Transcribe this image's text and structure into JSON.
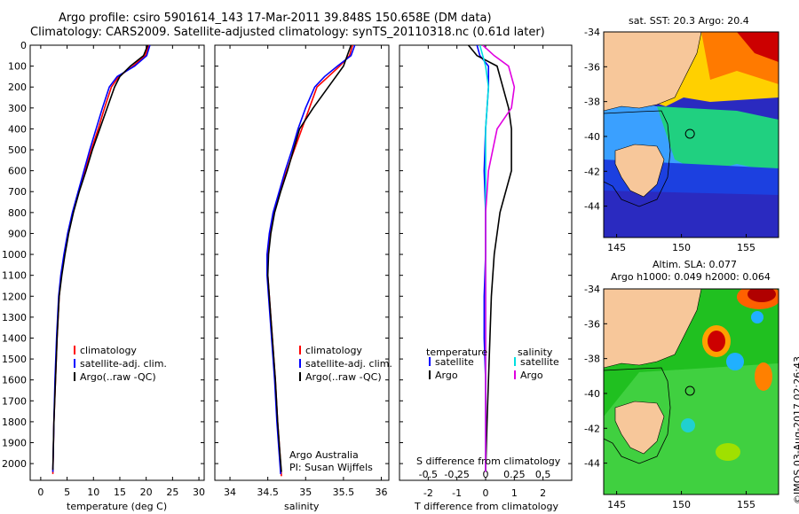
{
  "header": {
    "title1": "Argo profile: csiro 5901614_143 17-Mar-2011 39.848S 150.658E (DM data)",
    "title2": "Climatology: CARS2009. Satellite-adjusted climatology: synTS_20110318.nc (0.61d later)"
  },
  "chart_data": [
    {
      "type": "line",
      "panel": "temperature",
      "xlabel": "temperature (deg C)",
      "ylabel": "",
      "xlim": [
        -2,
        31
      ],
      "ylim": [
        2080,
        0
      ],
      "x_ticks": [
        0,
        5,
        10,
        15,
        20,
        25,
        30
      ],
      "y_ticks": [
        0,
        100,
        200,
        300,
        400,
        500,
        600,
        700,
        800,
        900,
        1000,
        1100,
        1200,
        1300,
        1400,
        1500,
        1600,
        1700,
        1800,
        1900,
        2000
      ],
      "legend": [
        "climatology",
        "satellite-adj. clim.",
        "Argo(..raw -QC)"
      ],
      "series": [
        {
          "name": "climatology",
          "color": "#ff0000",
          "x": [
            20.5,
            19.8,
            17.5,
            14.8,
            13.4,
            12.1,
            10.9,
            9.6,
            8.4,
            7.2,
            6.1,
            5.2,
            4.5,
            3.9,
            3.5,
            3.1,
            2.8,
            2.5,
            2.3
          ],
          "y": [
            0,
            50,
            100,
            150,
            200,
            300,
            400,
            500,
            600,
            700,
            800,
            900,
            1000,
            1100,
            1200,
            1400,
            1600,
            1800,
            2050
          ]
        },
        {
          "name": "satellite-adj. clim.",
          "color": "#0000ff",
          "x": [
            20.7,
            20.1,
            17.8,
            14.5,
            13.0,
            11.7,
            10.5,
            9.3,
            8.2,
            7.1,
            6.0,
            5.1,
            4.4,
            3.8,
            3.4,
            3.0,
            2.7,
            2.5,
            2.3
          ],
          "y": [
            0,
            50,
            100,
            150,
            200,
            300,
            400,
            500,
            600,
            700,
            800,
            900,
            1000,
            1100,
            1200,
            1400,
            1600,
            1800,
            2040
          ]
        },
        {
          "name": "Argo(..raw -QC)",
          "color": "#000000",
          "x": [
            20.3,
            19.5,
            17.0,
            15.0,
            14.0,
            12.6,
            11.2,
            9.8,
            8.6,
            7.3,
            6.2,
            5.3,
            4.6,
            4.0,
            3.5,
            3.1,
            2.8,
            2.5,
            2.3
          ],
          "y": [
            0,
            50,
            100,
            150,
            200,
            300,
            400,
            500,
            600,
            700,
            800,
            900,
            1000,
            1100,
            1200,
            1400,
            1600,
            1800,
            2030
          ]
        }
      ]
    },
    {
      "type": "line",
      "panel": "salinity",
      "xlabel": "salinity",
      "xlim": [
        33.8,
        36.1
      ],
      "ylim": [
        2080,
        0
      ],
      "x_ticks": [
        34,
        34.5,
        35,
        35.5,
        36
      ],
      "legend": [
        "climatology",
        "satellite-adj. clim.",
        "Argo(..raw -QC)"
      ],
      "annotation": [
        "Argo Australia",
        "PI: Susan Wijffels"
      ],
      "series": [
        {
          "name": "climatology",
          "color": "#ff0000",
          "x": [
            35.62,
            35.58,
            35.45,
            35.3,
            35.15,
            35.05,
            34.95,
            34.85,
            34.75,
            34.66,
            34.58,
            34.53,
            34.5,
            34.5,
            34.52,
            34.56,
            34.6,
            34.63,
            34.66,
            34.68
          ],
          "y": [
            0,
            50,
            100,
            150,
            200,
            300,
            400,
            500,
            600,
            700,
            800,
            900,
            1000,
            1100,
            1200,
            1400,
            1600,
            1800,
            1950,
            2060
          ]
        },
        {
          "name": "satellite-adj. clim.",
          "color": "#0000ff",
          "x": [
            35.65,
            35.6,
            35.42,
            35.25,
            35.12,
            35.0,
            34.9,
            34.82,
            34.73,
            34.65,
            34.57,
            34.52,
            34.49,
            34.49,
            34.51,
            34.55,
            34.59,
            34.62,
            34.65,
            34.67
          ],
          "y": [
            0,
            50,
            100,
            150,
            200,
            300,
            400,
            500,
            600,
            700,
            800,
            900,
            1000,
            1100,
            1200,
            1400,
            1600,
            1800,
            1950,
            2050
          ]
        },
        {
          "name": "Argo(..raw -QC)",
          "color": "#000000",
          "x": [
            35.6,
            35.55,
            35.5,
            35.4,
            35.3,
            35.1,
            34.92,
            34.84,
            34.76,
            34.67,
            34.59,
            34.54,
            34.51,
            34.5,
            34.52,
            34.56,
            34.6,
            34.63,
            34.66,
            34.68
          ],
          "y": [
            0,
            50,
            100,
            150,
            200,
            300,
            400,
            500,
            600,
            700,
            800,
            900,
            1000,
            1100,
            1200,
            1400,
            1600,
            1800,
            1950,
            2040
          ]
        }
      ]
    },
    {
      "type": "line",
      "panel": "difference",
      "xlabel": "T difference from climatology",
      "xlabel_top": "S difference from climatology",
      "xlim": [
        -3,
        3
      ],
      "ylim": [
        2080,
        0
      ],
      "x_ticks": [
        -2,
        -1,
        0,
        1,
        2
      ],
      "s_ticks": [
        -0.5,
        -0.25,
        0,
        0.25,
        0.5
      ],
      "legend_headers": [
        "temperature",
        "salinity"
      ],
      "legend": [
        "satellite",
        "Argo",
        "satellite",
        "Argo"
      ],
      "series": [
        {
          "name": "satellite",
          "color": "#0000ff",
          "x": [
            -0.3,
            -0.2,
            0.1,
            0.1,
            0.05,
            0.0,
            -0.05,
            0.0,
            0.0,
            -0.05,
            -0.05,
            0.0,
            0.0,
            0.0
          ],
          "y": [
            0,
            50,
            100,
            200,
            300,
            400,
            600,
            800,
            1000,
            1200,
            1400,
            1600,
            1800,
            2040
          ]
        },
        {
          "name": "Argo",
          "color": "#000000",
          "x": [
            -0.6,
            -0.3,
            0.4,
            0.6,
            0.8,
            0.9,
            0.9,
            0.5,
            0.3,
            0.2,
            0.15,
            0.1,
            0.05,
            0.0
          ],
          "y": [
            0,
            50,
            100,
            200,
            300,
            400,
            600,
            800,
            1000,
            1200,
            1400,
            1600,
            1800,
            2040
          ]
        },
        {
          "name": "satellite",
          "color": "#00e0e0",
          "x": [
            -0.2,
            -0.1,
            0.0,
            0.1,
            0.05,
            0.0,
            0.0,
            0.0,
            0.0,
            0.0,
            0.0,
            0.0,
            0.0,
            0.0
          ],
          "y": [
            0,
            50,
            100,
            200,
            300,
            400,
            600,
            800,
            1000,
            1200,
            1400,
            1600,
            1800,
            2040
          ]
        },
        {
          "name": "Argo",
          "color": "#e000e0",
          "x": [
            -0.1,
            0.3,
            0.8,
            1.0,
            0.9,
            0.4,
            0.1,
            0.0,
            0.0,
            0.0,
            0.0,
            0.0,
            0.0,
            0.0
          ],
          "y": [
            0,
            50,
            100,
            200,
            300,
            400,
            600,
            800,
            1000,
            1200,
            1400,
            1600,
            1800,
            2040
          ]
        }
      ]
    },
    {
      "type": "heatmap",
      "panel": "sst-map",
      "title": "sat. SST: 20.3  Argo: 20.4",
      "xlim": [
        144,
        157.5
      ],
      "ylim": [
        -45.8,
        -34
      ],
      "x_ticks": [
        145,
        150,
        155
      ],
      "y_ticks": [
        -34,
        -36,
        -38,
        -40,
        -42,
        -44
      ],
      "marker": {
        "lon": 150.658,
        "lat": -39.848
      }
    },
    {
      "type": "heatmap",
      "panel": "sla-map",
      "title": "Altim. SLA: 0.077",
      "subtitle": "Argo h1000: 0.049  h2000: 0.064",
      "xlim": [
        144,
        157.5
      ],
      "ylim": [
        -45.8,
        -34
      ],
      "x_ticks": [
        145,
        150,
        155
      ],
      "y_ticks": [
        -34,
        -36,
        -38,
        -40,
        -42,
        -44
      ],
      "marker": {
        "lon": 150.658,
        "lat": -39.848
      }
    }
  ],
  "footer": {
    "credit": "©IMOS 03-Aug-2017 02:26:43"
  }
}
